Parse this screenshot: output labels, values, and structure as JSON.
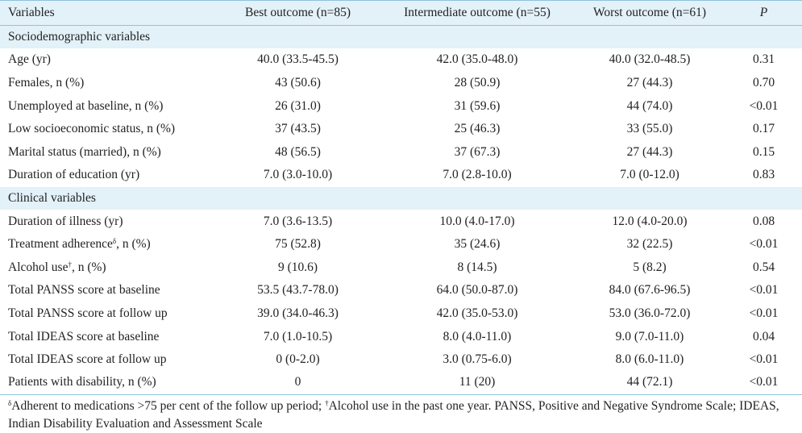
{
  "headers": [
    "Variables",
    "Best outcome (n=85)",
    "Intermediate outcome (n=55)",
    "Worst outcome (n=61)",
    "P"
  ],
  "sections": [
    {
      "title": "Sociodemographic variables",
      "rows": [
        {
          "label": "Age (yr)",
          "best": "40.0 (33.5-45.5)",
          "intermediate": "42.0 (35.0-48.0)",
          "worst": "40.0 (32.0-48.5)",
          "p": "0.31"
        },
        {
          "label": "Females, n (%)",
          "best": "43 (50.6)",
          "intermediate": "28 (50.9)",
          "worst": "27 (44.3)",
          "p": "0.70"
        },
        {
          "label": "Unemployed at baseline, n (%)",
          "best": "26 (31.0)",
          "intermediate": "31 (59.6)",
          "worst": "44 (74.0)",
          "p": "<0.01"
        },
        {
          "label": "Low socioeconomic status, n (%)",
          "best": "37 (43.5)",
          "intermediate": "25 (46.3)",
          "worst": "33 (55.0)",
          "p": "0.17"
        },
        {
          "label": "Marital status (married), n (%)",
          "best": "48 (56.5)",
          "intermediate": "37 (67.3)",
          "worst": "27 (44.3)",
          "p": "0.15"
        },
        {
          "label": "Duration of education (yr)",
          "best": "7.0 (3.0-10.0)",
          "intermediate": "7.0 (2.8-10.0)",
          "worst": "7.0 (0-12.0)",
          "p": "0.83"
        }
      ]
    },
    {
      "title": "Clinical variables",
      "rows": [
        {
          "label": "Duration of illness (yr)",
          "best": "7.0 (3.6-13.5)",
          "intermediate": "10.0 (4.0-17.0)",
          "worst": "12.0 (4.0-20.0)",
          "p": "0.08"
        },
        {
          "label": "Treatment adherence",
          "sup": "δ",
          "label_suffix": ", n (%)",
          "best": "75 (52.8)",
          "intermediate": "35 (24.6)",
          "worst": "32 (22.5)",
          "p": "<0.01"
        },
        {
          "label": "Alcohol use",
          "sup": "†",
          "label_suffix": ", n (%)",
          "best": "9 (10.6)",
          "intermediate": "8 (14.5)",
          "worst": "5 (8.2)",
          "p": "0.54"
        },
        {
          "label": "Total PANSS score at baseline",
          "best": "53.5 (43.7-78.0)",
          "intermediate": "64.0 (50.0-87.0)",
          "worst": "84.0 (67.6-96.5)",
          "p": "<0.01"
        },
        {
          "label": "Total PANSS score at follow up",
          "best": "39.0 (34.0-46.3)",
          "intermediate": "42.0 (35.0-53.0)",
          "worst": "53.0 (36.0-72.0)",
          "p": "<0.01"
        },
        {
          "label": "Total IDEAS score at baseline",
          "best": "7.0 (1.0-10.5)",
          "intermediate": "8.0 (4.0-11.0)",
          "worst": "9.0 (7.0-11.0)",
          "p": "0.04"
        },
        {
          "label": "Total IDEAS score at follow up",
          "best": "0 (0-2.0)",
          "intermediate": "3.0 (0.75-6.0)",
          "worst": "8.0 (6.0-11.0)",
          "p": "<0.01"
        },
        {
          "label": "Patients with disability, n (%)",
          "best": "0",
          "intermediate": "11 (20)",
          "worst": "44 (72.1)",
          "p": "<0.01"
        }
      ]
    }
  ],
  "footnote": {
    "sup1": "δ",
    "text1": "Adherent to medications >75 per cent of the follow up period; ",
    "sup2": "†",
    "text2": "Alcohol use in the past one year. PANSS, Positive and Negative Syndrome Scale; IDEAS, Indian Disability Evaluation and Assessment Scale"
  },
  "colors": {
    "header_bg": "#e3f1f8",
    "rule": "#8fc3d9",
    "text": "#222222"
  }
}
